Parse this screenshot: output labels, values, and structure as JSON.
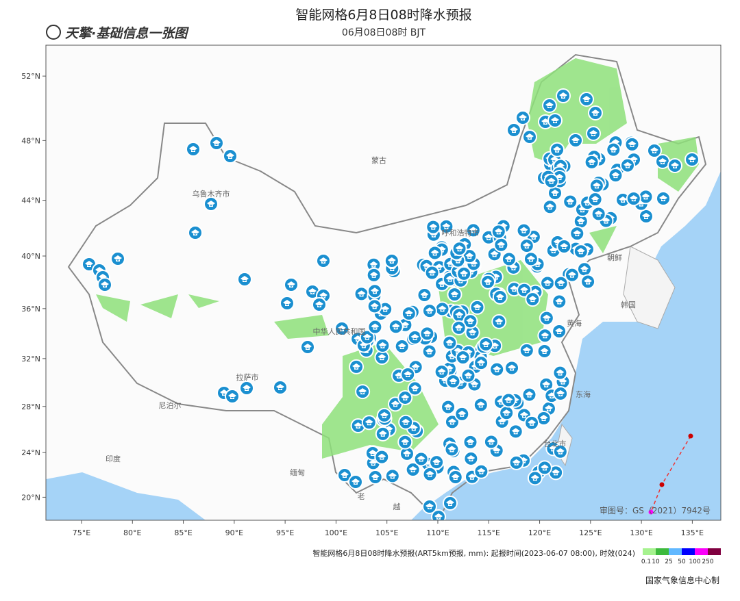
{
  "header": {
    "logo": "天擎·基础信息一张图",
    "title": "智能网格6月8日08时降水预报",
    "subtitle": "06月08日08时 BJT"
  },
  "map": {
    "lon_range": [
      71.5,
      137.8
    ],
    "lat_range": [
      17.9,
      53.8
    ],
    "lon_ticks": [
      {
        "value": 75,
        "label": "75°E"
      },
      {
        "value": 80,
        "label": "80°E"
      },
      {
        "value": 85,
        "label": "85°E"
      },
      {
        "value": 90,
        "label": "90°E"
      },
      {
        "value": 95,
        "label": "95°E"
      },
      {
        "value": 100,
        "label": "100°E"
      },
      {
        "value": 105,
        "label": "105°E"
      },
      {
        "value": 110,
        "label": "110°E"
      },
      {
        "value": 115,
        "label": "115°E"
      },
      {
        "value": 120,
        "label": "120°E"
      },
      {
        "value": 125,
        "label": "125°E"
      },
      {
        "value": 130,
        "label": "130°E"
      },
      {
        "value": 135,
        "label": "135°E"
      }
    ],
    "lat_ticks": [
      {
        "value": 20,
        "label": "20°N"
      },
      {
        "value": 24,
        "label": "24°N"
      },
      {
        "value": 28,
        "label": "28°N"
      },
      {
        "value": 32,
        "label": "32°N"
      },
      {
        "value": 36,
        "label": "36°N"
      },
      {
        "value": 40,
        "label": "40°N"
      },
      {
        "value": 44,
        "label": "44°N"
      },
      {
        "value": 48,
        "label": "48°N"
      },
      {
        "value": 52,
        "label": "52°N"
      }
    ],
    "labels": [
      "蒙古",
      "中华人民共和国",
      "乌鲁木齐市",
      "拉萨市",
      "尼泊尔",
      "印度",
      "缅甸",
      "朝鲜",
      "韩国",
      "黄海",
      "东海",
      "台北市",
      "老",
      "越",
      "呼和浩特市"
    ],
    "approval": "审图号：GS（2021）7942号"
  },
  "legend": {
    "caption": "智能网格6月8日08时降水预报(ART5km预报, mm): 起报时间(2023-06-07 08:00), 时效(024)",
    "levels": [
      0.1,
      10,
      25,
      50,
      100,
      250
    ],
    "colors": [
      "#a6f28f",
      "#3dba3d",
      "#61b8ff",
      "#0000fe",
      "#fa00fa",
      "#800040"
    ]
  },
  "footer": "国家气象信息中心制"
}
